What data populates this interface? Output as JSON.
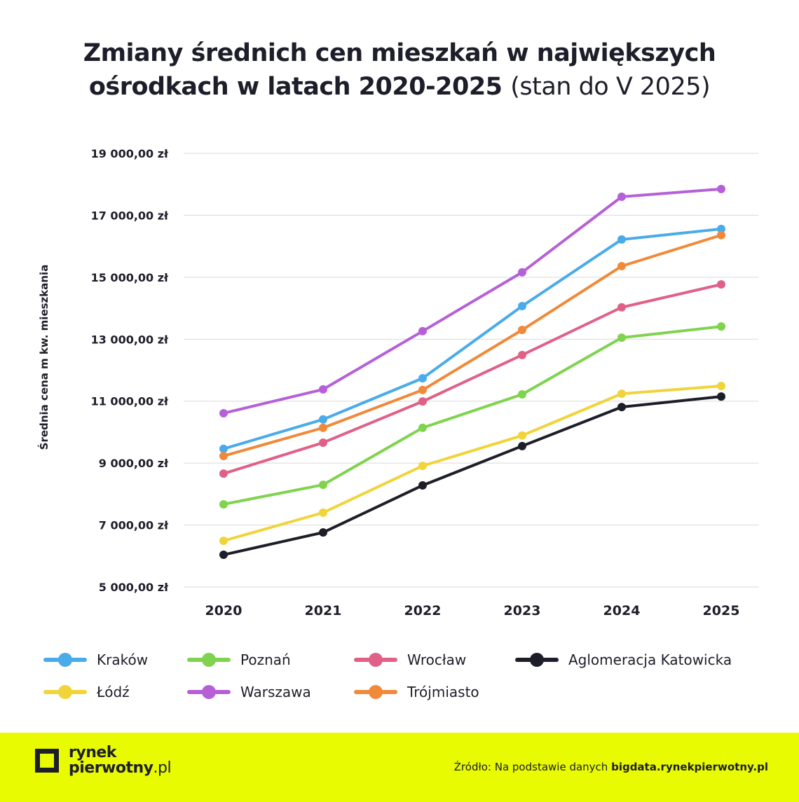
{
  "title": {
    "main": "Zmiany średnich cen mieszkań w największych ośrodkach w latach 2020-2025",
    "line1": "Zmiany średnich cen mieszkań w największych",
    "line2": "ośrodkach w latach 2020-2025",
    "subtitle": "(stan do V 2025)"
  },
  "chart_data": {
    "type": "line",
    "title": "Zmiany średnich cen mieszkań w największych ośrodkach w latach 2020-2025 (stan do V 2025)",
    "xlabel": "",
    "ylabel": "Średnia cena m kw. mieszkania",
    "x": [
      "2020",
      "2021",
      "2022",
      "2023",
      "2024",
      "2025"
    ],
    "ylim": [
      5000,
      19000
    ],
    "yticks": [
      5000,
      7000,
      9000,
      11000,
      13000,
      15000,
      17000,
      19000
    ],
    "ytick_labels": [
      "5 000,00 zł",
      "7 000,00 zł",
      "9 000,00 zł",
      "11 000,00 zł",
      "13 000,00 zł",
      "15 000,00 zł",
      "17 000,00 zł",
      "19 000,00 zł"
    ],
    "grid": true,
    "legend_position": "bottom",
    "series": [
      {
        "name": "Kraków",
        "color": "#4aabea",
        "values": [
          9460,
          10410,
          11740,
          14070,
          16220,
          16560
        ]
      },
      {
        "name": "Poznań",
        "color": "#7fd34e",
        "values": [
          7670,
          8300,
          10140,
          11220,
          13050,
          13410
        ]
      },
      {
        "name": "Wrocław",
        "color": "#e06088",
        "values": [
          8660,
          9660,
          10990,
          12490,
          14030,
          14770
        ]
      },
      {
        "name": "Aglomeracja Katowicka",
        "color": "#1e1e2a",
        "values": [
          6040,
          6760,
          8280,
          9550,
          10810,
          11150
        ]
      },
      {
        "name": "Łódź",
        "color": "#f0d43a",
        "values": [
          6490,
          7400,
          8910,
          9890,
          11240,
          11490
        ]
      },
      {
        "name": "Warszawa",
        "color": "#b660d8",
        "values": [
          10610,
          11380,
          13260,
          15160,
          17600,
          17850
        ]
      },
      {
        "name": "Trójmiasto",
        "color": "#f08a3a",
        "values": [
          9230,
          10140,
          11360,
          13300,
          15360,
          16360
        ]
      }
    ]
  },
  "footer": {
    "logo_line1": "rynek",
    "logo_line2": "pierwotny",
    "logo_suffix": ".pl",
    "source_prefix": "Źródło: Na podstawie danych ",
    "source_site": "bigdata.rynekpierwotny.pl",
    "bg_color": "#e8fb00"
  }
}
